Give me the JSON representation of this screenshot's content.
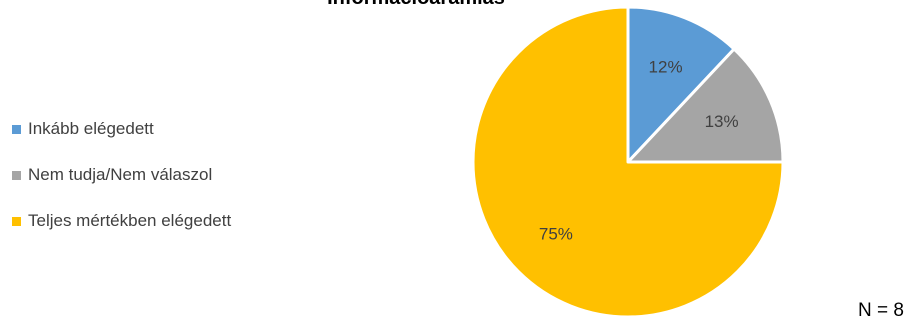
{
  "chart_data": {
    "type": "pie",
    "title": "Információáramlás",
    "slices": [
      {
        "label": "Inkább elégedett",
        "value": 12,
        "value_label": "12%",
        "color": "#5B9BD5"
      },
      {
        "label": "Nem tudja/Nem válaszol",
        "value": 13,
        "value_label": "13%",
        "color": "#A5A5A5"
      },
      {
        "label": "Teljes mértékben elégedett",
        "value": 75,
        "value_label": "75%",
        "color": "#FFC000"
      }
    ],
    "legend_position": "left",
    "start_angle": "top",
    "direction": "clockwise"
  },
  "footnote": "N = 8"
}
